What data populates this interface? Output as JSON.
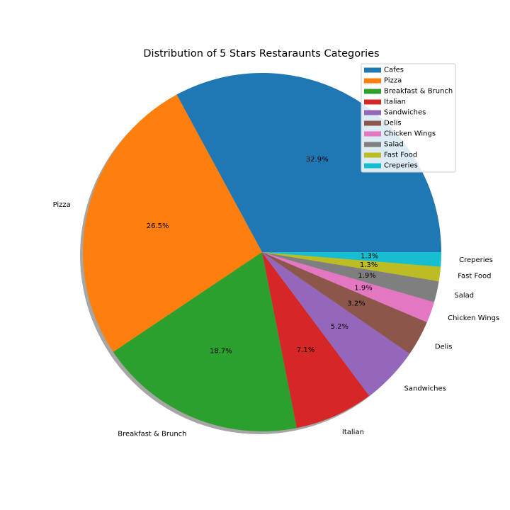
{
  "chart_data": {
    "type": "pie",
    "title": "Distribution of 5 Stars Restaraunts Categories",
    "categories": [
      "Cafes",
      "Pizza",
      "Breakfast & Brunch",
      "Italian",
      "Sandwiches",
      "Delis",
      "Chicken Wings",
      "Salad",
      "Fast Food",
      "Creperies"
    ],
    "values": [
      32.9,
      26.5,
      18.7,
      7.1,
      5.2,
      3.2,
      1.9,
      1.9,
      1.3,
      1.3
    ],
    "value_labels": [
      "32.9%",
      "26.5%",
      "18.7%",
      "7.1%",
      "5.2%",
      "3.2%",
      "1.9%",
      "1.9%",
      "1.3%",
      "1.3%"
    ],
    "colors": [
      "#1f77b4",
      "#ff7f0e",
      "#2ca02c",
      "#d62728",
      "#9467bd",
      "#8c564b",
      "#e377c2",
      "#7f7f7f",
      "#bcbd22",
      "#17becf"
    ],
    "start_angle_deg": 0,
    "direction": "counterclockwise",
    "shadow": true,
    "legend": {
      "placement": "top-right",
      "entries": [
        "Cafes",
        "Pizza",
        "Breakfast & Brunch",
        "Italian",
        "Sandwiches",
        "Delis",
        "Chicken Wings",
        "Salad",
        "Fast Food",
        "Creperies"
      ]
    }
  }
}
